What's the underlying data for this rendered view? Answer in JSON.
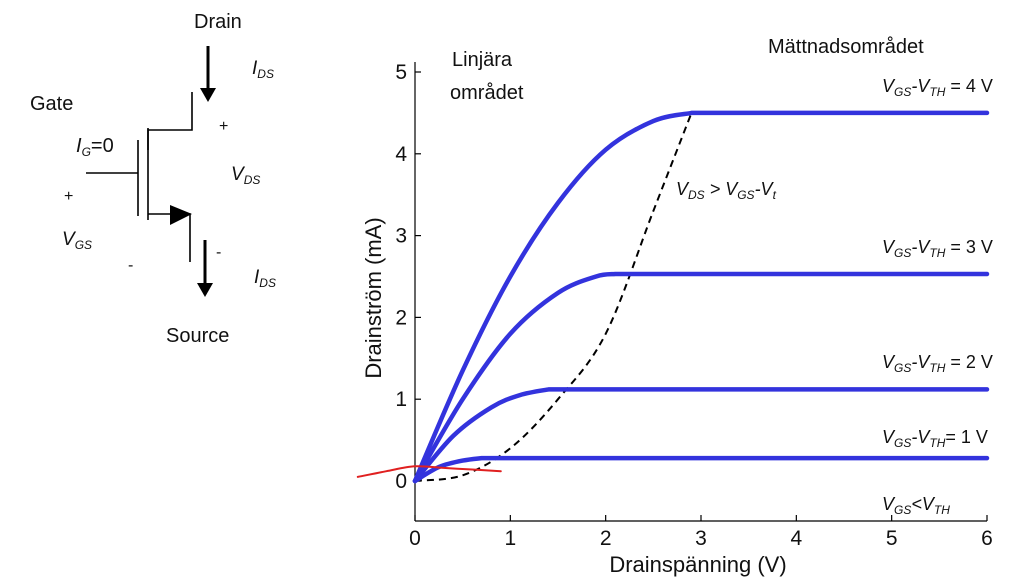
{
  "circuit": {
    "drain": "Drain",
    "gate": "Gate",
    "source": "Source",
    "ig": {
      "main": "I",
      "sub": "G",
      "rest": "=0"
    },
    "ids_top": {
      "main": "I",
      "sub": "DS"
    },
    "ids_bottom": {
      "main": "I",
      "sub": "DS"
    },
    "vds": {
      "main": "V",
      "sub": "DS"
    },
    "vgs": {
      "main": "V",
      "sub": "GS"
    },
    "plus_drain": "+",
    "minus_source": "-",
    "plus_gate": "+",
    "minus_gate": "-"
  },
  "regions": {
    "linear_line1": "Linjära",
    "linear_line2": "området",
    "saturation": "Mättnadsområdet"
  },
  "boundary_label": {
    "a": "V",
    "a_sub": "DS",
    "mid": " > V",
    "b_sub": "GS",
    "c": "-V",
    "c_sub": "t"
  },
  "curve_labels": [
    {
      "a": "V",
      "a_sub": "GS",
      "mid": "-V",
      "b_sub": "TH",
      "rest": " = 4 V"
    },
    {
      "a": "V",
      "a_sub": "GS",
      "mid": "-V",
      "b_sub": "TH",
      "rest": " = 3 V"
    },
    {
      "a": "V",
      "a_sub": "GS",
      "mid": "-V",
      "b_sub": "TH",
      "rest": " = 2 V"
    },
    {
      "a": "V",
      "a_sub": "GS",
      "mid": "-V",
      "b_sub": "TH",
      "rest": "= 1 V"
    },
    {
      "a": "V",
      "a_sub": "GS",
      "mid": "<V",
      "b_sub": "TH",
      "rest": ""
    }
  ],
  "colors": {
    "curve": "#3333dd",
    "boundary": "#000000",
    "annotation": "#e02020",
    "axis": "#000000"
  },
  "chart_data": {
    "type": "line",
    "xlabel": "Drainspänning (V)",
    "ylabel": "Drainström (mA)",
    "xlim": [
      0,
      6
    ],
    "ylim": [
      0,
      5
    ],
    "xticks": [
      0,
      1,
      2,
      3,
      4,
      5,
      6
    ],
    "yticks": [
      0,
      1,
      2,
      3,
      4,
      5
    ],
    "grid": false,
    "series": [
      {
        "overdrive": 4,
        "x": [
          0,
          0.5,
          1.0,
          1.5,
          2.0,
          2.5,
          2.9,
          6
        ],
        "y": [
          0,
          1.35,
          2.5,
          3.4,
          4.05,
          4.4,
          4.5,
          4.5
        ]
      },
      {
        "overdrive": 3,
        "x": [
          0,
          0.5,
          1.0,
          1.5,
          1.9,
          2.1,
          6
        ],
        "y": [
          0,
          1.0,
          1.8,
          2.3,
          2.5,
          2.53,
          2.53
        ]
      },
      {
        "overdrive": 2,
        "x": [
          0,
          0.4,
          0.8,
          1.1,
          1.4,
          6
        ],
        "y": [
          0,
          0.55,
          0.9,
          1.05,
          1.12,
          1.12
        ]
      },
      {
        "overdrive": 1,
        "x": [
          0,
          0.25,
          0.5,
          0.7,
          6
        ],
        "y": [
          0,
          0.17,
          0.25,
          0.28,
          0.28
        ]
      },
      {
        "overdrive": 0,
        "x": [
          0,
          6
        ],
        "y": [
          0,
          0
        ]
      }
    ],
    "boundary": {
      "x": [
        0,
        0.5,
        1.0,
        1.5,
        2.0,
        2.5,
        2.9
      ],
      "y": [
        0,
        0.07,
        0.4,
        1.0,
        1.8,
        3.3,
        4.5
      ]
    },
    "annotation_stroke": {
      "x": [
        -0.6,
        -0.3,
        0.0,
        0.3,
        0.6,
        0.9
      ],
      "y": [
        0.05,
        0.12,
        0.18,
        0.16,
        0.14,
        0.12
      ]
    }
  }
}
